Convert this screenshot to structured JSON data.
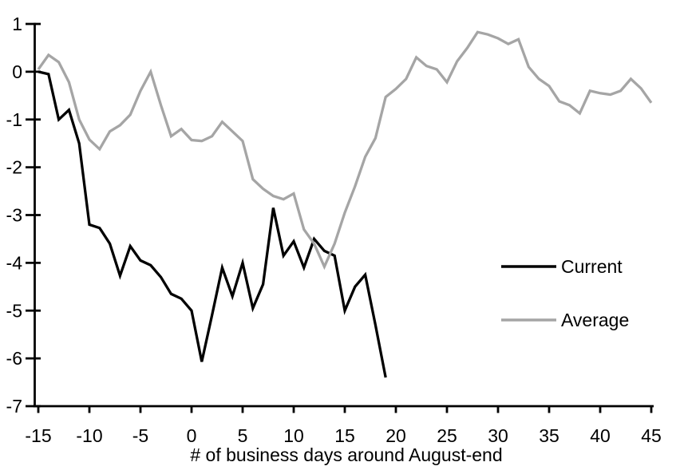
{
  "chart_data": {
    "type": "line",
    "title": "",
    "xlabel": "# of business days around August-end",
    "ylabel": "",
    "xlim": [
      -15,
      45
    ],
    "ylim": [
      -7,
      1
    ],
    "grid": false,
    "legend_position": "middle-right",
    "x_ticks": [
      -15,
      -10,
      -5,
      0,
      5,
      10,
      15,
      20,
      25,
      30,
      35,
      40,
      45
    ],
    "y_ticks": [
      1,
      0,
      -1,
      -2,
      -3,
      -4,
      -5,
      -6,
      -7
    ],
    "series": [
      {
        "name": "Current",
        "color": "#000000",
        "x": [
          -15,
          -14,
          -13,
          -12,
          -11,
          -10,
          -9,
          -8,
          -7,
          -6,
          -5,
          -4,
          -3,
          -2,
          -1,
          0,
          1,
          2,
          3,
          4,
          5,
          6,
          7,
          8,
          9,
          10,
          11,
          12,
          13,
          14,
          15,
          16,
          17,
          18,
          19
        ],
        "values": [
          0.0,
          -0.05,
          -1.0,
          -0.8,
          -1.5,
          -3.2,
          -3.27,
          -3.6,
          -4.27,
          -3.65,
          -3.95,
          -4.05,
          -4.3,
          -4.65,
          -4.75,
          -5.0,
          -6.07,
          -5.1,
          -4.1,
          -4.7,
          -4.0,
          -4.95,
          -4.45,
          -2.85,
          -3.85,
          -3.55,
          -4.1,
          -3.5,
          -3.75,
          -3.85,
          -5.0,
          -4.5,
          -4.25,
          -5.3,
          -6.4
        ]
      },
      {
        "name": "Average",
        "color": "#a5a5a5",
        "x": [
          -15,
          -14,
          -13,
          -12,
          -11,
          -10,
          -9,
          -8,
          -7,
          -6,
          -5,
          -4,
          -3,
          -2,
          -1,
          0,
          1,
          2,
          3,
          4,
          5,
          6,
          7,
          8,
          9,
          10,
          11,
          12,
          13,
          14,
          15,
          16,
          17,
          18,
          19,
          20,
          21,
          22,
          23,
          24,
          25,
          26,
          27,
          28,
          29,
          30,
          31,
          32,
          33,
          34,
          35,
          36,
          37,
          38,
          39,
          40,
          41,
          42,
          43,
          44,
          45
        ],
        "values": [
          0.05,
          0.35,
          0.2,
          -0.22,
          -1.0,
          -1.42,
          -1.62,
          -1.25,
          -1.12,
          -0.9,
          -0.4,
          0.0,
          -0.7,
          -1.35,
          -1.2,
          -1.43,
          -1.45,
          -1.35,
          -1.05,
          -1.25,
          -1.45,
          -2.25,
          -2.45,
          -2.6,
          -2.67,
          -2.55,
          -3.3,
          -3.6,
          -4.08,
          -3.6,
          -2.95,
          -2.4,
          -1.78,
          -1.39,
          -0.53,
          -0.36,
          -0.15,
          0.3,
          0.12,
          0.05,
          -0.22,
          0.22,
          0.5,
          0.83,
          0.78,
          0.7,
          0.58,
          0.68,
          0.1,
          -0.15,
          -0.3,
          -0.62,
          -0.7,
          -0.87,
          -0.4,
          -0.45,
          -0.48,
          -0.4,
          -0.15,
          -0.35,
          -0.65
        ]
      }
    ]
  },
  "colors": {
    "background": "#ffffff",
    "axis": "#000000",
    "current_line": "#000000",
    "average_line": "#a5a5a5"
  },
  "legend": {
    "labels": [
      "Current",
      "Average"
    ]
  }
}
